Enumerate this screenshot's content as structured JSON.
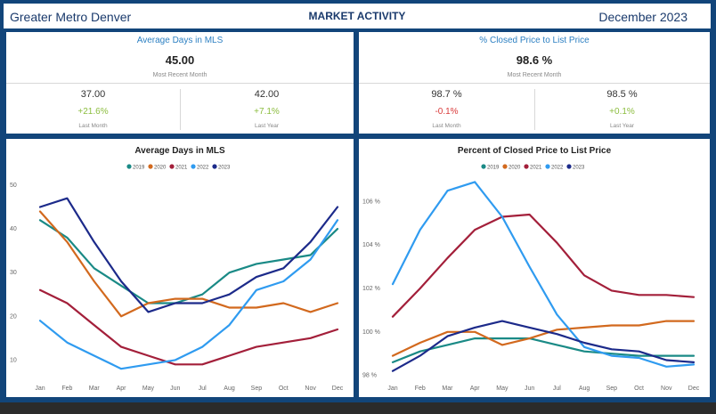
{
  "header": {
    "region": "Greater Metro Denver",
    "title": "MARKET ACTIVITY",
    "period": "December 2023"
  },
  "kpis": [
    {
      "title": "Average Days in MLS",
      "value": "45.00",
      "sub": "Most Recent Month",
      "left": {
        "value": "37.00",
        "change": "+21.6%",
        "label": "Last Month",
        "trend": "pos"
      },
      "right": {
        "value": "42.00",
        "change": "+7.1%",
        "label": "Last Year",
        "trend": "pos"
      }
    },
    {
      "title": "% Closed Price to List Price",
      "value": "98.6 %",
      "sub": "Most Recent Month",
      "left": {
        "value": "98.7 %",
        "change": "-0.1%",
        "label": "Last Month",
        "trend": "neg"
      },
      "right": {
        "value": "98.5 %",
        "change": "+0.1%",
        "label": "Last Year",
        "trend": "pos"
      }
    }
  ],
  "colors": {
    "2019": "#1a8a86",
    "2020": "#d2691e",
    "2021": "#a31f3a",
    "2022": "#2f9bf0",
    "2023": "#1c2a8a"
  },
  "chart_data": [
    {
      "type": "line",
      "title": "Average Days in MLS",
      "categories": [
        "Jan",
        "Feb",
        "Mar",
        "Apr",
        "May",
        "Jun",
        "Jul",
        "Aug",
        "Sep",
        "Oct",
        "Nov",
        "Dec"
      ],
      "ylim": [
        6,
        50
      ],
      "yticks": [
        10,
        20,
        30,
        40,
        50
      ],
      "ytick_labels": [
        "10",
        "20",
        "30",
        "40",
        "50"
      ],
      "legend": "top-center",
      "series": [
        {
          "name": "2019",
          "values": [
            42,
            38,
            31,
            27,
            23,
            23,
            25,
            30,
            32,
            33,
            34,
            40
          ]
        },
        {
          "name": "2020",
          "values": [
            44,
            37,
            28,
            20,
            23,
            24,
            24,
            22,
            22,
            23,
            21,
            23
          ]
        },
        {
          "name": "2021",
          "values": [
            26,
            23,
            18,
            13,
            11,
            9,
            9,
            11,
            13,
            14,
            15,
            17
          ]
        },
        {
          "name": "2022",
          "values": [
            19,
            14,
            11,
            8,
            9,
            10,
            13,
            18,
            26,
            28,
            33,
            42
          ]
        },
        {
          "name": "2023",
          "values": [
            45,
            47,
            37,
            28,
            21,
            23,
            23,
            25,
            29,
            31,
            37,
            45
          ]
        }
      ]
    },
    {
      "type": "line",
      "title": "Percent of Closed Price to List Price",
      "categories": [
        "Jan",
        "Feb",
        "Mar",
        "Apr",
        "May",
        "Jun",
        "Jul",
        "Aug",
        "Sep",
        "Oct",
        "Nov",
        "Dec"
      ],
      "ylim": [
        97.9,
        107.0
      ],
      "yticks": [
        98,
        100,
        102,
        104,
        106
      ],
      "ytick_labels": [
        "98 %",
        "100 %",
        "102 %",
        "104 %",
        "106 %"
      ],
      "legend": "top-center",
      "series": [
        {
          "name": "2019",
          "values": [
            98.6,
            99.1,
            99.4,
            99.7,
            99.7,
            99.7,
            99.4,
            99.1,
            99.0,
            98.9,
            98.9,
            98.9
          ]
        },
        {
          "name": "2020",
          "values": [
            98.9,
            99.5,
            100.0,
            100.0,
            99.4,
            99.7,
            100.1,
            100.2,
            100.3,
            100.3,
            100.5,
            100.5
          ]
        },
        {
          "name": "2021",
          "values": [
            100.7,
            102.0,
            103.4,
            104.7,
            105.3,
            105.4,
            104.1,
            102.6,
            101.9,
            101.7,
            101.7,
            101.6
          ]
        },
        {
          "name": "2022",
          "values": [
            102.2,
            104.7,
            106.5,
            106.9,
            105.3,
            103.0,
            100.8,
            99.3,
            98.9,
            98.8,
            98.4,
            98.5
          ]
        },
        {
          "name": "2023",
          "values": [
            98.2,
            98.9,
            99.8,
            100.2,
            100.5,
            100.2,
            99.9,
            99.5,
            99.2,
            99.1,
            98.7,
            98.6
          ]
        }
      ]
    }
  ]
}
